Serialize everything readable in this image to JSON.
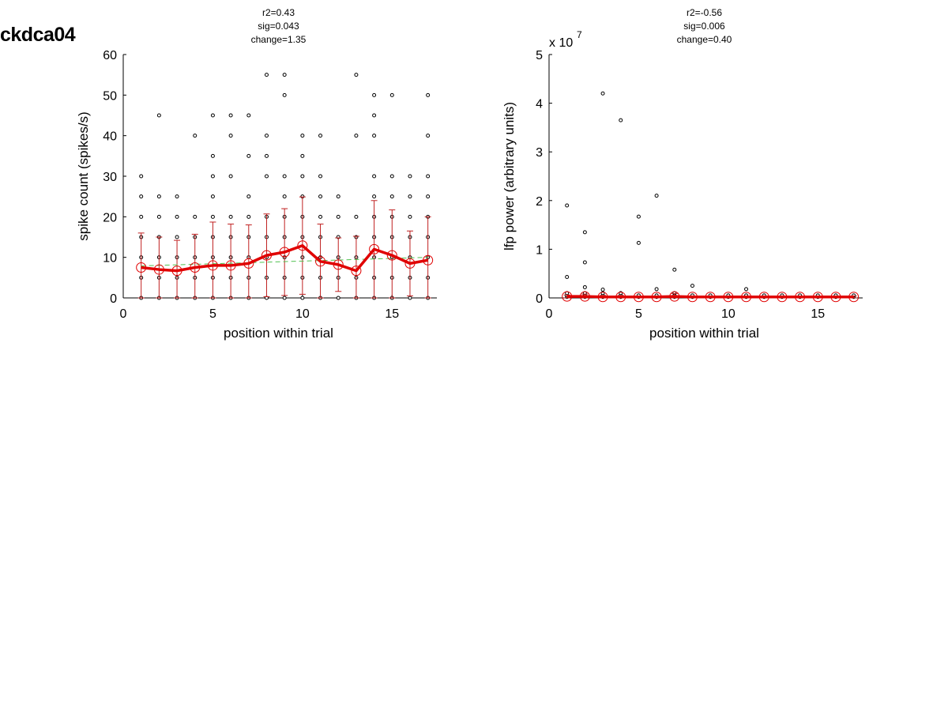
{
  "figure_title": "ckdca04",
  "colors": {
    "mean": "#e00000",
    "errorbar": "#c02020",
    "fit": "#50c050",
    "points": "#000000"
  },
  "chart_data": [
    {
      "type": "scatter",
      "stats": [
        "r2=0.43",
        "sig=0.043",
        "change=1.35"
      ],
      "xlabel": "position within trial",
      "ylabel": "spike count (spikes/s)",
      "xlim": [
        0,
        17.5
      ],
      "ylim": [
        0,
        60
      ],
      "xticks": [
        0,
        5,
        10,
        15
      ],
      "yticks": [
        0,
        10,
        20,
        30,
        40,
        50,
        60
      ],
      "exponent_label": "",
      "grid": false,
      "points": [
        {
          "x": 1,
          "ys": [
            0,
            5,
            10,
            15,
            20,
            25,
            30
          ]
        },
        {
          "x": 2,
          "ys": [
            0,
            5,
            10,
            15,
            20,
            25,
            45
          ]
        },
        {
          "x": 3,
          "ys": [
            0,
            5,
            10,
            15,
            20,
            25
          ]
        },
        {
          "x": 4,
          "ys": [
            0,
            5,
            10,
            15,
            20,
            40
          ]
        },
        {
          "x": 5,
          "ys": [
            0,
            5,
            10,
            15,
            20,
            25,
            30,
            35,
            45
          ]
        },
        {
          "x": 6,
          "ys": [
            0,
            5,
            10,
            15,
            20,
            30,
            40,
            45
          ]
        },
        {
          "x": 7,
          "ys": [
            0,
            5,
            10,
            15,
            20,
            25,
            35,
            45
          ]
        },
        {
          "x": 8,
          "ys": [
            0,
            5,
            10,
            15,
            20,
            30,
            35,
            40,
            55
          ]
        },
        {
          "x": 9,
          "ys": [
            0,
            5,
            10,
            15,
            20,
            25,
            30,
            50,
            55
          ]
        },
        {
          "x": 10,
          "ys": [
            0,
            5,
            10,
            15,
            20,
            25,
            30,
            35,
            40
          ]
        },
        {
          "x": 11,
          "ys": [
            0,
            5,
            10,
            15,
            20,
            25,
            30,
            40
          ]
        },
        {
          "x": 12,
          "ys": [
            0,
            5,
            10,
            15,
            20,
            25
          ]
        },
        {
          "x": 13,
          "ys": [
            0,
            5,
            10,
            15,
            20,
            40,
            55
          ]
        },
        {
          "x": 14,
          "ys": [
            0,
            5,
            10,
            15,
            20,
            25,
            30,
            40,
            45,
            50
          ]
        },
        {
          "x": 15,
          "ys": [
            0,
            5,
            10,
            15,
            20,
            25,
            30,
            50
          ]
        },
        {
          "x": 16,
          "ys": [
            0,
            5,
            10,
            15,
            20,
            25,
            30
          ]
        },
        {
          "x": 17,
          "ys": [
            0,
            5,
            10,
            15,
            20,
            25,
            30,
            40,
            50
          ]
        }
      ],
      "mean": [
        7.5,
        7.0,
        6.7,
        7.5,
        8.0,
        8.0,
        8.5,
        10.5,
        11.3,
        12.9,
        9.0,
        8.2,
        6.7,
        12.0,
        10.5,
        8.5,
        9.3
      ],
      "sd": [
        8.5,
        8.0,
        7.5,
        8.2,
        10.7,
        10.2,
        9.5,
        10.2,
        10.7,
        12.0,
        9.2,
        6.6,
        8.5,
        12.0,
        11.2,
        8.0,
        10.7
      ],
      "fit": [
        7.9,
        10.0
      ]
    },
    {
      "type": "scatter",
      "stats": [
        "r2=-0.56",
        "sig=0.006",
        "change=0.40"
      ],
      "xlabel": "position within trial",
      "ylabel": "lfp power (arbitrary units)",
      "xlim": [
        0,
        17.5
      ],
      "ylim": [
        0,
        5
      ],
      "xticks": [
        0,
        5,
        10,
        15
      ],
      "yticks": [
        0,
        1,
        2,
        3,
        4,
        5
      ],
      "exponent_label": "x 10",
      "exponent_power": "7",
      "grid": false,
      "points": [
        {
          "x": 1,
          "ys": [
            0.02,
            0.05,
            0.1,
            0.43,
            1.9
          ]
        },
        {
          "x": 2,
          "ys": [
            0.02,
            0.05,
            0.1,
            0.22,
            0.73,
            1.35
          ]
        },
        {
          "x": 3,
          "ys": [
            0.02,
            0.05,
            0.1,
            0.17,
            4.2
          ]
        },
        {
          "x": 4,
          "ys": [
            0.02,
            0.05,
            0.1,
            3.65
          ]
        },
        {
          "x": 5,
          "ys": [
            0.02,
            0.05,
            1.13,
            1.67
          ]
        },
        {
          "x": 6,
          "ys": [
            0.02,
            0.05,
            0.18,
            2.1
          ]
        },
        {
          "x": 7,
          "ys": [
            0.02,
            0.05,
            0.1,
            0.58
          ]
        },
        {
          "x": 8,
          "ys": [
            0.02,
            0.05,
            0.25
          ]
        },
        {
          "x": 9,
          "ys": [
            0.02,
            0.05
          ]
        },
        {
          "x": 10,
          "ys": [
            0.02,
            0.05
          ]
        },
        {
          "x": 11,
          "ys": [
            0.02,
            0.05,
            0.18
          ]
        },
        {
          "x": 12,
          "ys": [
            0.02,
            0.05
          ]
        },
        {
          "x": 13,
          "ys": [
            0.02,
            0.05
          ]
        },
        {
          "x": 14,
          "ys": [
            0.02,
            0.05
          ]
        },
        {
          "x": 15,
          "ys": [
            0.02,
            0.05
          ]
        },
        {
          "x": 16,
          "ys": [
            0.02,
            0.05
          ]
        },
        {
          "x": 17,
          "ys": [
            0.02,
            0.05
          ]
        }
      ],
      "mean": [
        0.03,
        0.03,
        0.02,
        0.02,
        0.02,
        0.02,
        0.03,
        0.02,
        0.02,
        0.02,
        0.02,
        0.02,
        0.02,
        0.02,
        0.02,
        0.02,
        0.02
      ],
      "sd": [
        0.03,
        0.05,
        0.03,
        0.03,
        0.02,
        0.02,
        0.06,
        0.02,
        0.02,
        0.02,
        0.02,
        0.02,
        0.02,
        0.02,
        0.02,
        0.02,
        0.02
      ],
      "fit": [
        0.03,
        0.02
      ]
    }
  ]
}
